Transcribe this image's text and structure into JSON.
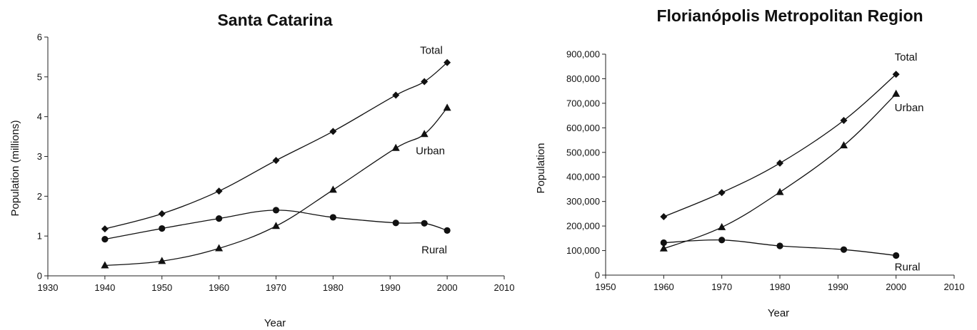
{
  "chart_data": [
    {
      "type": "line",
      "title": "Santa Catarina",
      "xlabel": "Year",
      "ylabel": "Population (millions)",
      "xlim": [
        1930,
        2010
      ],
      "ylim": [
        0,
        6
      ],
      "xticks": [
        "1930",
        "1940",
        "1950",
        "1960",
        "1970",
        "1980",
        "1990",
        "2000",
        "2010"
      ],
      "yticks": [
        "0",
        "1",
        "2",
        "3",
        "4",
        "5",
        "6"
      ],
      "grid": false,
      "series": [
        {
          "name": "Total",
          "marker": "diamond",
          "x": [
            1940,
            1950,
            1960,
            1970,
            1980,
            1991,
            1996,
            2000
          ],
          "y": [
            1.18,
            1.56,
            2.13,
            2.9,
            3.63,
            4.54,
            4.88,
            5.36
          ]
        },
        {
          "name": "Urban",
          "marker": "triangle",
          "x": [
            1940,
            1950,
            1960,
            1970,
            1980,
            1991,
            1996,
            2000
          ],
          "y": [
            0.26,
            0.37,
            0.69,
            1.25,
            2.16,
            3.21,
            3.56,
            4.22
          ]
        },
        {
          "name": "Rural",
          "marker": "circle",
          "x": [
            1940,
            1950,
            1960,
            1970,
            1980,
            1991,
            1996,
            2000
          ],
          "y": [
            0.92,
            1.19,
            1.44,
            1.65,
            1.47,
            1.33,
            1.32,
            1.14
          ]
        }
      ]
    },
    {
      "type": "line",
      "title": "Florianópolis Metropolitan Region",
      "xlabel": "Year",
      "ylabel": "Population",
      "xlim": [
        1950,
        2010
      ],
      "ylim": [
        0,
        900000
      ],
      "xticks": [
        "1950",
        "1960",
        "1970",
        "1980",
        "1990",
        "2000",
        "2010"
      ],
      "yticks": [
        "0",
        "100,000",
        "200,000",
        "300,000",
        "400,000",
        "500,000",
        "600,000",
        "700,000",
        "800,000",
        "900,000"
      ],
      "grid": false,
      "series": [
        {
          "name": "Total",
          "marker": "diamond",
          "x": [
            1960,
            1970,
            1980,
            1991,
            2000
          ],
          "y": [
            238000,
            336000,
            456000,
            630000,
            818000
          ]
        },
        {
          "name": "Urban",
          "marker": "triangle",
          "x": [
            1960,
            1970,
            1980,
            1991,
            2000
          ],
          "y": [
            108000,
            195000,
            338000,
            528000,
            738000
          ]
        },
        {
          "name": "Rural",
          "marker": "circle",
          "x": [
            1960,
            1970,
            1980,
            1991,
            2000
          ],
          "y": [
            132000,
            143000,
            119000,
            104000,
            80000
          ]
        }
      ]
    }
  ]
}
